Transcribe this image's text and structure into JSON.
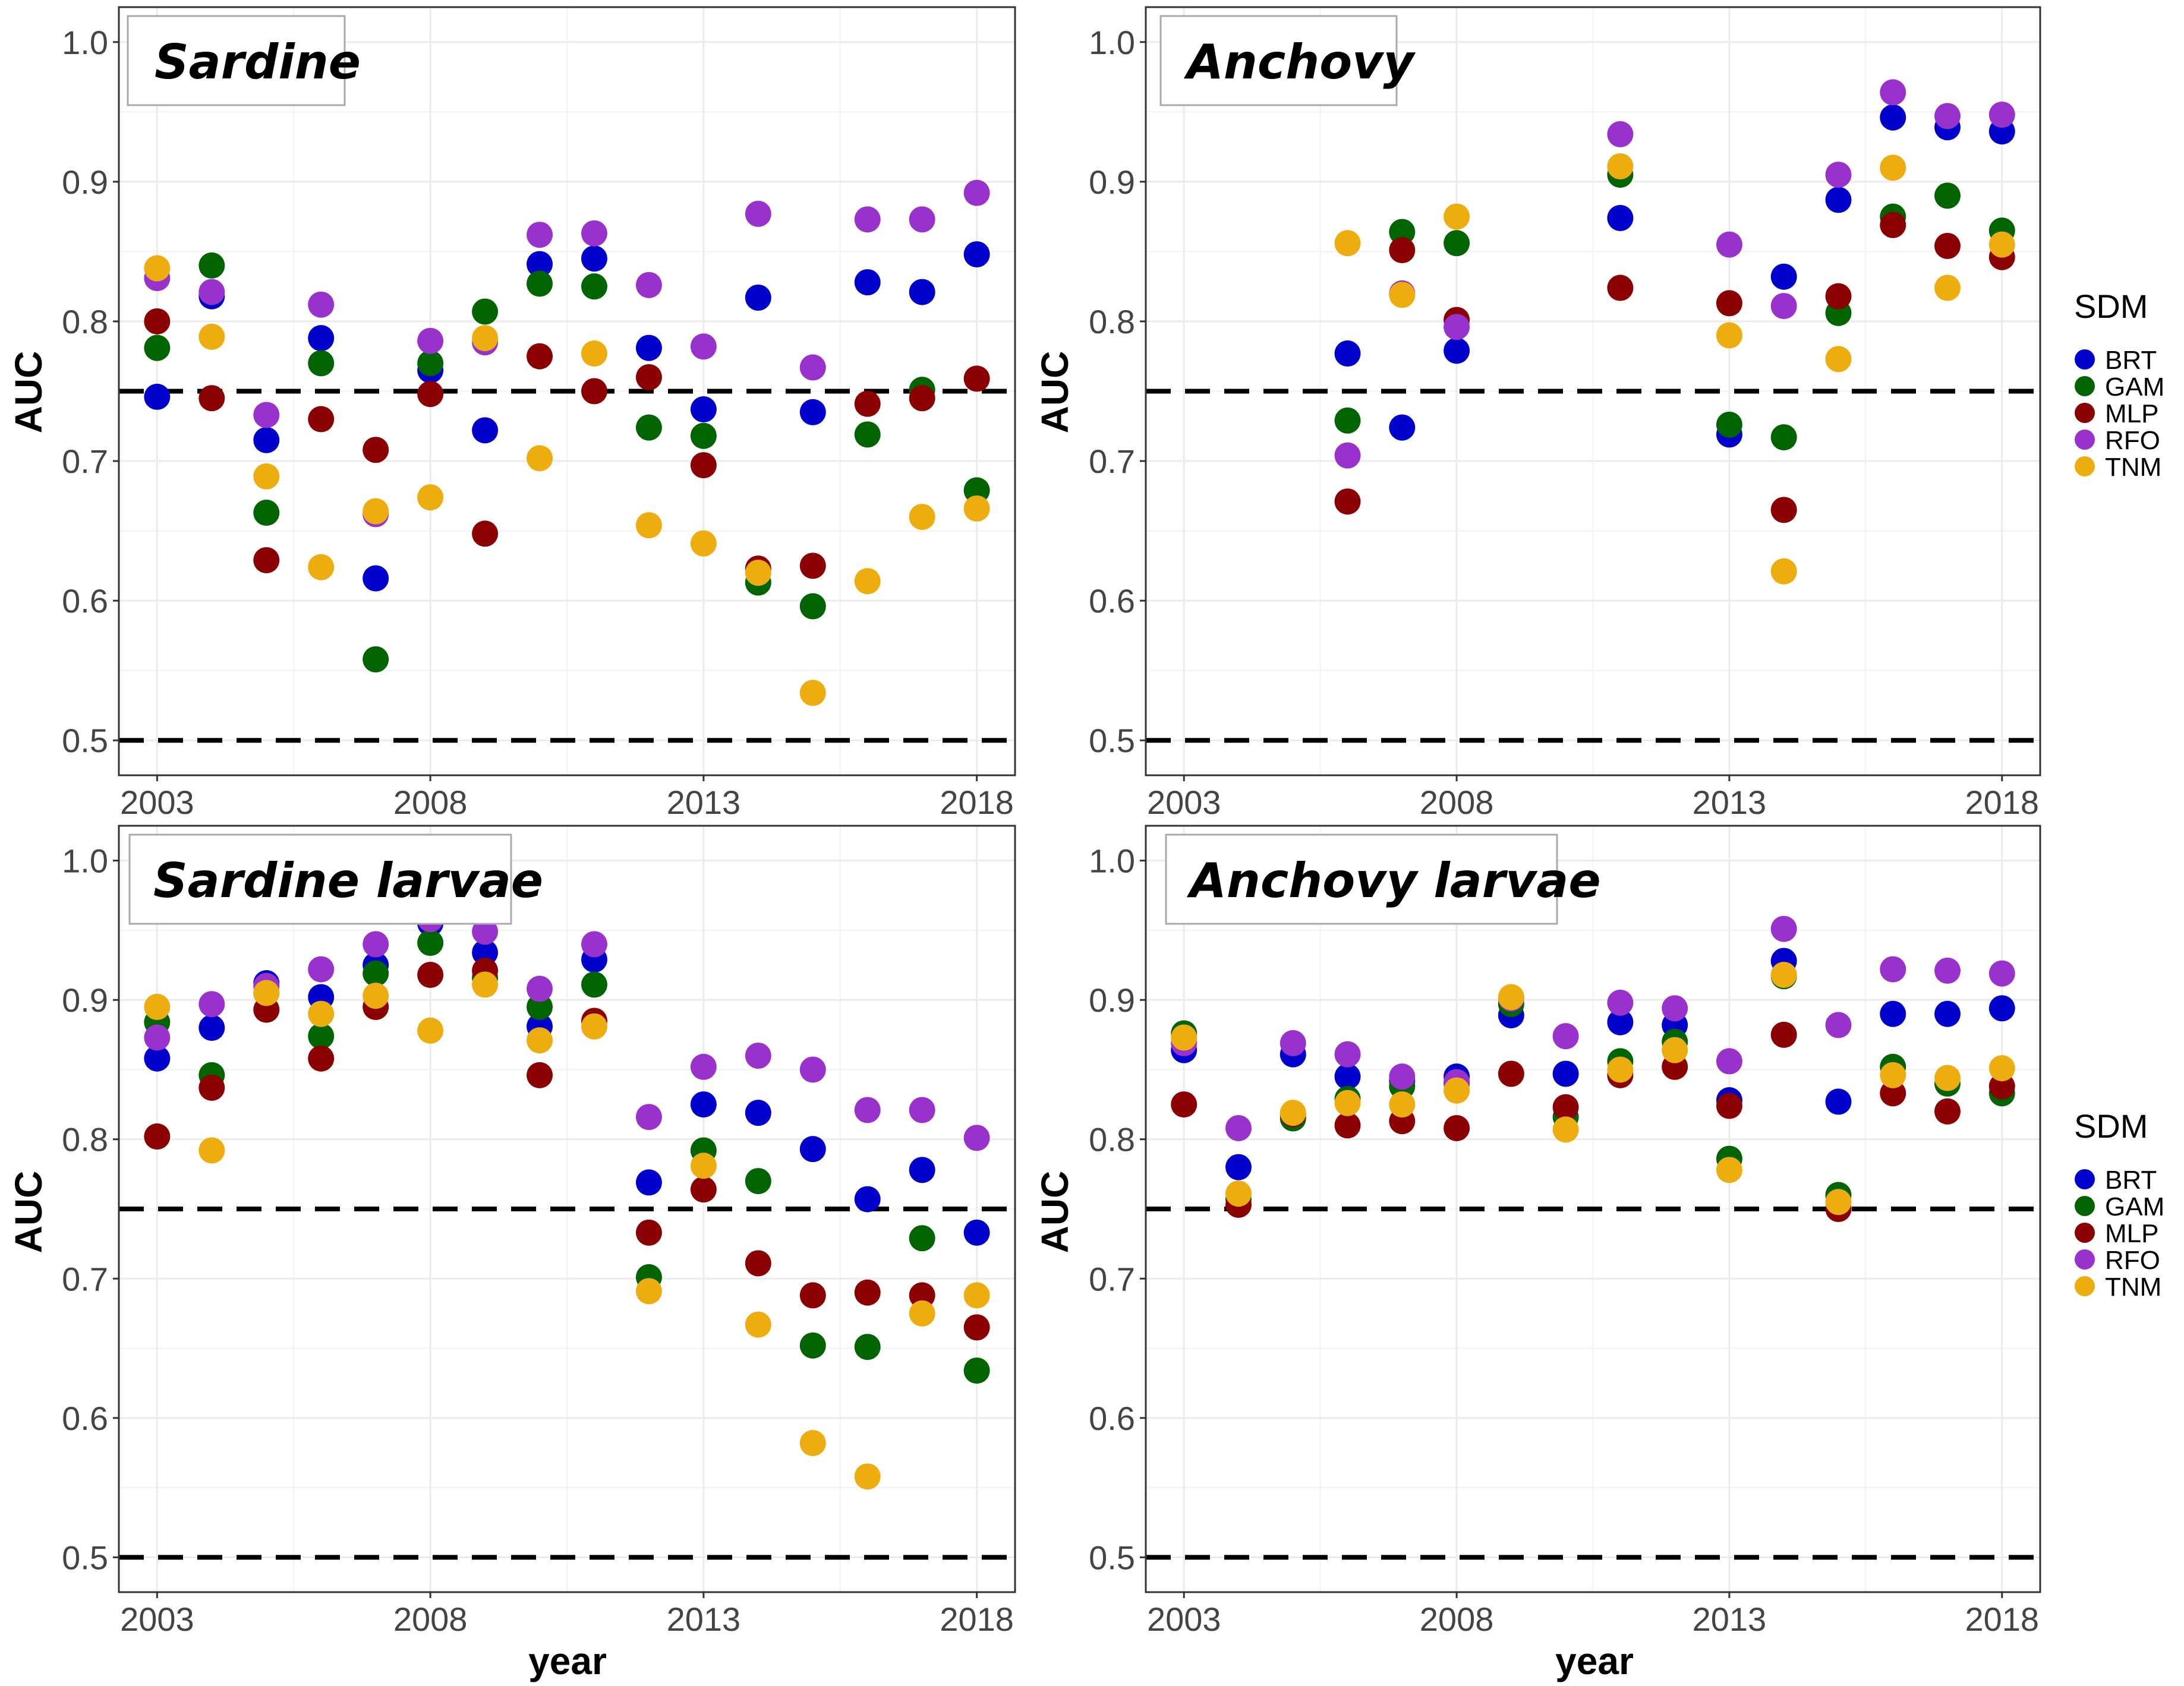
{
  "models": [
    {
      "name": "BRT",
      "color": "#0000CD"
    },
    {
      "name": "GAM",
      "color": "#006400"
    },
    {
      "name": "MLP",
      "color": "#8B0000"
    },
    {
      "name": "RFO",
      "color": "#9932CC"
    },
    {
      "name": "TNM",
      "color": "#EEAD0E"
    }
  ],
  "legend": {
    "title": "SDM",
    "labels": [
      "BRT",
      "GAM",
      "MLP",
      "RFO",
      "TNM"
    ]
  },
  "axes": {
    "xlabel": "year",
    "ylabel": "AUC"
  },
  "chart_data": [
    {
      "type": "scatter",
      "title": "Sardine",
      "xlabel": "year",
      "ylabel": "AUC",
      "xlim": [
        2002.3,
        2018.7
      ],
      "ylim": [
        0.475,
        1.025
      ],
      "xticks": [
        2003,
        2008,
        2013,
        2018
      ],
      "yticks": [
        0.5,
        0.6,
        0.7,
        0.8,
        0.9,
        1.0
      ],
      "ytick_labels": [
        "0.5",
        "0.6",
        "0.7",
        "0.8",
        "0.9",
        "1.0"
      ],
      "reference_lines": [
        0.5,
        0.75
      ],
      "series": [
        {
          "name": "BRT",
          "x": [
            2003,
            2004,
            2005,
            2006,
            2007,
            2008,
            2009,
            2010,
            2011,
            2012,
            2013,
            2014,
            2015,
            2016,
            2017,
            2018
          ],
          "y": [
            0.746,
            0.818,
            0.715,
            0.788,
            0.616,
            0.765,
            0.722,
            0.841,
            0.845,
            0.781,
            0.737,
            0.817,
            0.735,
            0.828,
            0.821,
            0.848
          ]
        },
        {
          "name": "GAM",
          "x": [
            2003,
            2004,
            2005,
            2006,
            2007,
            2008,
            2009,
            2010,
            2011,
            2012,
            2013,
            2014,
            2015,
            2016,
            2017,
            2018
          ],
          "y": [
            0.781,
            0.84,
            0.663,
            0.77,
            0.558,
            0.77,
            0.807,
            0.827,
            0.825,
            0.724,
            0.718,
            0.613,
            0.596,
            0.719,
            0.751,
            0.679
          ]
        },
        {
          "name": "MLP",
          "x": [
            2003,
            2004,
            2005,
            2006,
            2007,
            2008,
            2009,
            2010,
            2011,
            2012,
            2013,
            2014,
            2015,
            2016,
            2017,
            2018
          ],
          "y": [
            0.8,
            0.745,
            0.629,
            0.73,
            0.708,
            0.748,
            0.648,
            0.775,
            0.75,
            0.76,
            0.697,
            0.623,
            0.625,
            0.741,
            0.745,
            0.759
          ]
        },
        {
          "name": "RFO",
          "x": [
            2003,
            2004,
            2005,
            2006,
            2007,
            2008,
            2009,
            2010,
            2011,
            2012,
            2013,
            2014,
            2015,
            2016,
            2017,
            2018
          ],
          "y": [
            0.831,
            0.821,
            0.733,
            0.812,
            0.662,
            0.786,
            0.785,
            0.862,
            0.863,
            0.826,
            0.782,
            0.877,
            0.767,
            0.873,
            0.873,
            0.892
          ]
        },
        {
          "name": "TNM",
          "x": [
            2003,
            2004,
            2005,
            2006,
            2007,
            2008,
            2009,
            2010,
            2011,
            2012,
            2013,
            2014,
            2015,
            2016,
            2017,
            2018
          ],
          "y": [
            0.838,
            0.789,
            0.689,
            0.624,
            0.664,
            0.674,
            0.788,
            0.702,
            0.777,
            0.654,
            0.641,
            0.62,
            0.534,
            0.614,
            0.66,
            0.666
          ]
        }
      ]
    },
    {
      "type": "scatter",
      "title": "Anchovy",
      "xlabel": "year",
      "ylabel": "AUC",
      "xlim": [
        2002.3,
        2018.7
      ],
      "ylim": [
        0.475,
        1.025
      ],
      "xticks": [
        2003,
        2008,
        2013,
        2018
      ],
      "yticks": [
        0.5,
        0.6,
        0.7,
        0.8,
        0.9,
        1.0
      ],
      "ytick_labels": [
        "0.5",
        "0.6",
        "0.7",
        "0.8",
        "0.9",
        "1.0"
      ],
      "reference_lines": [
        0.5,
        0.75
      ],
      "series": [
        {
          "name": "BRT",
          "x": [
            2006,
            2007,
            2008,
            2011,
            2013,
            2014,
            2015,
            2016,
            2017,
            2018
          ],
          "y": [
            0.777,
            0.724,
            0.779,
            0.874,
            0.719,
            0.832,
            0.887,
            0.946,
            0.939,
            0.936
          ]
        },
        {
          "name": "GAM",
          "x": [
            2006,
            2007,
            2008,
            2011,
            2013,
            2014,
            2015,
            2016,
            2017,
            2018
          ],
          "y": [
            0.729,
            0.864,
            0.856,
            0.905,
            0.726,
            0.717,
            0.806,
            0.875,
            0.89,
            0.865
          ]
        },
        {
          "name": "MLP",
          "x": [
            2006,
            2007,
            2008,
            2011,
            2013,
            2014,
            2015,
            2016,
            2017,
            2018
          ],
          "y": [
            0.671,
            0.851,
            0.801,
            0.824,
            0.813,
            0.665,
            0.818,
            0.869,
            0.854,
            0.846
          ]
        },
        {
          "name": "RFO",
          "x": [
            2006,
            2007,
            2008,
            2011,
            2013,
            2014,
            2015,
            2016,
            2017,
            2018
          ],
          "y": [
            0.704,
            0.82,
            0.796,
            0.934,
            0.855,
            0.811,
            0.905,
            0.964,
            0.947,
            0.948
          ]
        },
        {
          "name": "TNM",
          "x": [
            2006,
            2007,
            2008,
            2011,
            2013,
            2014,
            2015,
            2016,
            2017,
            2018
          ],
          "y": [
            0.856,
            0.819,
            0.875,
            0.911,
            0.79,
            0.621,
            0.773,
            0.91,
            0.824,
            0.855
          ]
        }
      ]
    },
    {
      "type": "scatter",
      "title": "Sardine larvae",
      "xlabel": "year",
      "ylabel": "AUC",
      "xlim": [
        2002.3,
        2018.7
      ],
      "ylim": [
        0.475,
        1.025
      ],
      "xticks": [
        2003,
        2008,
        2013,
        2018
      ],
      "yticks": [
        0.5,
        0.6,
        0.7,
        0.8,
        0.9,
        1.0
      ],
      "ytick_labels": [
        "0.5",
        "0.6",
        "0.7",
        "0.8",
        "0.9",
        "1.0"
      ],
      "reference_lines": [
        0.5,
        0.75
      ],
      "series": [
        {
          "name": "BRT",
          "x": [
            2003,
            2004,
            2005,
            2006,
            2007,
            2008,
            2009,
            2010,
            2011,
            2012,
            2013,
            2014,
            2015,
            2016,
            2017,
            2018
          ],
          "y": [
            0.858,
            0.88,
            0.912,
            0.902,
            0.925,
            0.955,
            0.934,
            0.881,
            0.929,
            0.769,
            0.825,
            0.819,
            0.793,
            0.757,
            0.778,
            0.733
          ]
        },
        {
          "name": "GAM",
          "x": [
            2003,
            2004,
            2005,
            2006,
            2007,
            2008,
            2009,
            2010,
            2011,
            2012,
            2013,
            2014,
            2015,
            2016,
            2017,
            2018
          ],
          "y": [
            0.884,
            0.846,
            0.905,
            0.874,
            0.919,
            0.941,
            0.916,
            0.895,
            0.911,
            0.701,
            0.792,
            0.77,
            0.652,
            0.651,
            0.729,
            0.634
          ]
        },
        {
          "name": "MLP",
          "x": [
            2003,
            2004,
            2005,
            2006,
            2007,
            2008,
            2009,
            2010,
            2011,
            2012,
            2013,
            2014,
            2015,
            2016,
            2017,
            2018
          ],
          "y": [
            0.802,
            0.837,
            0.893,
            0.858,
            0.895,
            0.918,
            0.921,
            0.846,
            0.885,
            0.733,
            0.764,
            0.711,
            0.688,
            0.69,
            0.688,
            0.665
          ]
        },
        {
          "name": "RFO",
          "x": [
            2003,
            2004,
            2005,
            2006,
            2007,
            2008,
            2009,
            2010,
            2011,
            2012,
            2013,
            2014,
            2015,
            2016,
            2017,
            2018
          ],
          "y": [
            0.873,
            0.897,
            0.91,
            0.922,
            0.94,
            0.958,
            0.949,
            0.908,
            0.94,
            0.816,
            0.852,
            0.86,
            0.85,
            0.821,
            0.821,
            0.801
          ]
        },
        {
          "name": "TNM",
          "x": [
            2003,
            2004,
            2005,
            2006,
            2007,
            2008,
            2009,
            2010,
            2011,
            2012,
            2013,
            2014,
            2015,
            2016,
            2017,
            2018
          ],
          "y": [
            0.895,
            0.792,
            0.905,
            0.89,
            0.903,
            0.878,
            0.911,
            0.871,
            0.881,
            0.691,
            0.781,
            0.667,
            0.582,
            0.558,
            0.675,
            0.688
          ]
        }
      ]
    },
    {
      "type": "scatter",
      "title": "Anchovy larvae",
      "xlabel": "year",
      "ylabel": "AUC",
      "xlim": [
        2002.3,
        2018.7
      ],
      "ylim": [
        0.475,
        1.025
      ],
      "xticks": [
        2003,
        2008,
        2013,
        2018
      ],
      "yticks": [
        0.5,
        0.6,
        0.7,
        0.8,
        0.9,
        1.0
      ],
      "ytick_labels": [
        "0.5",
        "0.6",
        "0.7",
        "0.8",
        "0.9",
        "1.0"
      ],
      "reference_lines": [
        0.5,
        0.75
      ],
      "series": [
        {
          "name": "BRT",
          "x": [
            2003,
            2004,
            2005,
            2006,
            2007,
            2008,
            2009,
            2010,
            2011,
            2012,
            2013,
            2014,
            2015,
            2016,
            2017,
            2018
          ],
          "y": [
            0.864,
            0.78,
            0.861,
            0.845,
            0.842,
            0.845,
            0.889,
            0.847,
            0.884,
            0.882,
            0.828,
            0.928,
            0.827,
            0.89,
            0.89,
            0.894
          ]
        },
        {
          "name": "GAM",
          "x": [
            2003,
            2004,
            2005,
            2006,
            2007,
            2008,
            2009,
            2010,
            2011,
            2012,
            2013,
            2014,
            2015,
            2016,
            2017,
            2018
          ],
          "y": [
            0.876,
            0.757,
            0.815,
            0.829,
            0.838,
            0.84,
            0.897,
            0.816,
            0.856,
            0.87,
            0.786,
            0.917,
            0.76,
            0.852,
            0.84,
            0.833
          ]
        },
        {
          "name": "MLP",
          "x": [
            2003,
            2004,
            2005,
            2006,
            2007,
            2008,
            2009,
            2010,
            2011,
            2012,
            2013,
            2014,
            2015,
            2016,
            2017,
            2018
          ],
          "y": [
            0.825,
            0.753,
            0.818,
            0.81,
            0.813,
            0.808,
            0.847,
            0.823,
            0.846,
            0.852,
            0.824,
            0.875,
            0.75,
            0.833,
            0.82,
            0.838
          ]
        },
        {
          "name": "RFO",
          "x": [
            2003,
            2004,
            2005,
            2006,
            2007,
            2008,
            2009,
            2010,
            2011,
            2012,
            2013,
            2014,
            2015,
            2016,
            2017,
            2018
          ],
          "y": [
            0.869,
            0.808,
            0.869,
            0.861,
            0.845,
            0.841,
            0.901,
            0.874,
            0.898,
            0.894,
            0.856,
            0.951,
            0.882,
            0.922,
            0.921,
            0.919
          ]
        },
        {
          "name": "TNM",
          "x": [
            2003,
            2004,
            2005,
            2006,
            2007,
            2008,
            2009,
            2010,
            2011,
            2012,
            2013,
            2014,
            2015,
            2016,
            2017,
            2018
          ],
          "y": [
            0.873,
            0.761,
            0.819,
            0.826,
            0.825,
            0.835,
            0.902,
            0.807,
            0.85,
            0.864,
            0.778,
            0.918,
            0.755,
            0.846,
            0.844,
            0.851
          ]
        }
      ]
    }
  ]
}
